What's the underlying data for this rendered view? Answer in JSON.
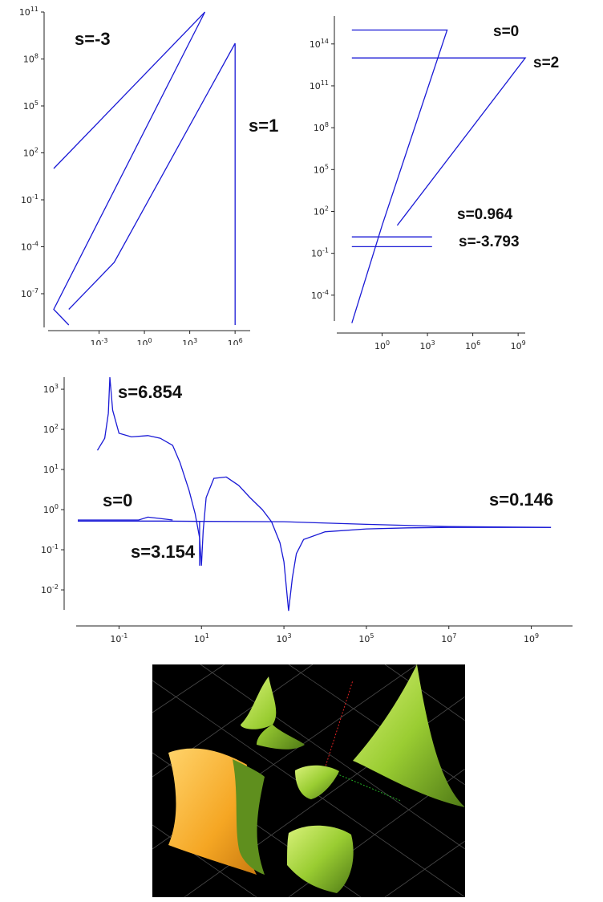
{
  "chart_data": [
    {
      "type": "line",
      "x_scale": "log",
      "y_scale": "log",
      "xlim": [
        1e-06,
        10000000.0
      ],
      "ylim": [
        1e-09,
        100000000000.0
      ],
      "x_ticks": [
        "10^-3",
        "10^0",
        "10^3",
        "10^6"
      ],
      "y_ticks": [
        "10^11",
        "10^8",
        "10^5",
        "10^2",
        "10^-1",
        "10^-4",
        "10^-7"
      ],
      "series": [
        {
          "name": "s=-3",
          "x": [
            1e-06,
            10000,
            1e-06,
            1e-05
          ],
          "y": [
            10,
            100000000000.0,
            1e-08,
            1e-09
          ]
        },
        {
          "name": "s=1",
          "x": [
            1e-05,
            0.01,
            1000000,
            1000000
          ],
          "y": [
            1e-08,
            1e-05,
            1000000000.0,
            1e-09
          ]
        }
      ],
      "annotations": [
        "s=-3",
        "s=1"
      ]
    },
    {
      "type": "line",
      "x_scale": "log",
      "y_scale": "log",
      "xlim": [
        0.001,
        10000000000.0
      ],
      "ylim": [
        1e-07,
        1e+16
      ],
      "x_ticks": [
        "10^0",
        "10^3",
        "10^6",
        "10^9"
      ],
      "y_ticks": [
        "10^14",
        "10^11",
        "10^8",
        "10^5",
        "10^2",
        "10^-1",
        "10^-4"
      ],
      "series": [
        {
          "name": "s=0",
          "x": [
            0.01,
            20000,
            1,
            1,
            0.01
          ],
          "y": [
            1000000000000000.0,
            1000000000000000.0,
            10,
            10,
            1e-06
          ]
        },
        {
          "name": "s=2",
          "x": [
            0.01,
            3000000000,
            10
          ],
          "y": [
            10000000000000.0,
            10000000000000.0,
            10
          ]
        },
        {
          "name": "s=0.964",
          "x": [
            0.01,
            2000
          ],
          "y": [
            1.5,
            1.5
          ]
        },
        {
          "name": "s=-3.793",
          "x": [
            0.01,
            2000
          ],
          "y": [
            0.3,
            0.3
          ]
        }
      ],
      "annotations": [
        "s=0",
        "s=2",
        "s=0.964",
        "s=-3.793"
      ]
    },
    {
      "type": "line",
      "x_scale": "log",
      "y_scale": "log",
      "xlim": [
        0.01,
        10000000000.0
      ],
      "ylim": [
        0.002,
        2000
      ],
      "x_ticks": [
        "10^-1",
        "10^1",
        "10^3",
        "10^5",
        "10^7",
        "10^9"
      ],
      "y_ticks": [
        "10^3",
        "10^2",
        "10^1",
        "10^0",
        "10^-1",
        "10^-2"
      ],
      "series": [
        {
          "name": "s=6.854",
          "x": [
            0.03,
            0.045,
            0.055,
            0.06,
            0.07,
            0.1,
            0.2,
            0.5,
            1,
            2,
            3,
            5,
            7,
            9,
            10,
            11,
            13,
            20,
            40,
            80,
            150,
            300,
            500,
            800,
            1000,
            1300,
            1600,
            2000,
            3000,
            10000,
            100000,
            1000000,
            10000000,
            100000000,
            3000000000
          ],
          "y": [
            30,
            60,
            250,
            2000,
            300,
            80,
            65,
            70,
            60,
            40,
            15,
            3,
            0.8,
            0.2,
            0.04,
            0.3,
            2,
            6,
            6.5,
            4,
            2,
            1,
            0.5,
            0.15,
            0.05,
            0.003,
            0.02,
            0.08,
            0.18,
            0.28,
            0.33,
            0.35,
            0.36,
            0.36,
            0.36
          ]
        },
        {
          "name": "s=0",
          "x": [
            0.01,
            0.3,
            0.5,
            1,
            2
          ],
          "y": [
            0.55,
            0.55,
            0.65,
            0.6,
            0.55
          ]
        },
        {
          "name": "s=0.146",
          "x": [
            0.01,
            1,
            10,
            1000,
            100000,
            10000000,
            3000000000
          ],
          "y": [
            0.52,
            0.52,
            0.51,
            0.5,
            0.43,
            0.38,
            0.36
          ]
        },
        {
          "name": "s=3.154",
          "x": [
            9,
            9,
            9
          ],
          "y": [
            0.5,
            0.3,
            0.04
          ]
        }
      ],
      "annotations": [
        "s=6.854",
        "s=0",
        "s=0.146",
        "s=3.154"
      ]
    }
  ],
  "colors": {
    "curve": "#1a1ad6",
    "surface_green": "#9acd32",
    "surface_orange": "#f5a623",
    "background_3d": "#000000",
    "grid_3d": "#555555"
  },
  "render_3d": {
    "type": "3d surface render"
  }
}
